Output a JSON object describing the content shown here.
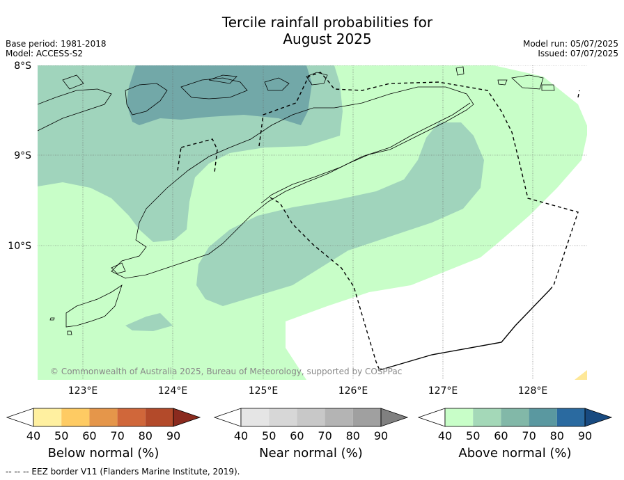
{
  "title_line1": "Tercile rainfall probabilities for",
  "title_line2": "August 2025",
  "base_period": "Base period: 1981-2018",
  "model": "Model: ACCESS-S2",
  "model_run": "Model run: 05/07/2025",
  "issued": "Issued: 07/07/2025",
  "copyright": "© Commonwealth of Australia 2025, Bureau of Meteorology, supported by COSPPac",
  "lat_labels": [
    "8°S",
    "9°S",
    "10°S"
  ],
  "lon_labels": [
    "123°E",
    "124°E",
    "125°E",
    "126°E",
    "127°E",
    "128°E"
  ],
  "colorbars": [
    {
      "name": "Below normal (%)",
      "ticks": [
        "40",
        "50",
        "60",
        "70",
        "80",
        "90"
      ],
      "colors": [
        "#ffffff",
        "#fff0a0",
        "#fecb63",
        "#e5964a",
        "#d0673a",
        "#b34a2a",
        "#8a2a1e"
      ]
    },
    {
      "name": "Near normal (%)",
      "ticks": [
        "40",
        "50",
        "60",
        "70",
        "80",
        "90"
      ],
      "colors": [
        "#ffffff",
        "#e5e5e5",
        "#d7d7d7",
        "#c8c8c8",
        "#b4b4b4",
        "#a0a0a0",
        "#808080"
      ]
    },
    {
      "name": "Above normal (%)",
      "ticks": [
        "40",
        "50",
        "60",
        "70",
        "80",
        "90"
      ],
      "colors": [
        "#ffffff",
        "#c8fec8",
        "#a4d8b8",
        "#82b8a8",
        "#5a98a0",
        "#2a6aa0",
        "#184a80"
      ]
    }
  ],
  "footnote": "--  --  -- EEZ border V11 (Flanders Marine Institute, 2019)."
}
